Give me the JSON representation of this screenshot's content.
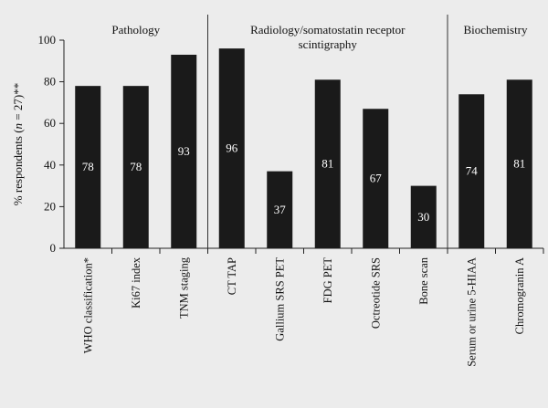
{
  "chart_data": {
    "type": "bar",
    "title": "",
    "xlabel": "",
    "ylabel": "% respondents (n = 27)**",
    "ylim": [
      0,
      100
    ],
    "yticks": [
      0,
      20,
      40,
      60,
      80,
      100
    ],
    "grid": false,
    "bar_color": "#1a1a1a",
    "value_label_color": "#ffffff",
    "groups": [
      {
        "name": "Pathology",
        "name_lines": [
          "Pathology"
        ],
        "categories": [
          "WHO classification*",
          "Ki67 index",
          "TNM staging"
        ]
      },
      {
        "name": "Radiology/somatostatin receptor scintigraphy",
        "name_lines": [
          "Radiology/somatostatin receptor",
          "scintigraphy"
        ],
        "categories": [
          "CT TAP",
          "Gallium SRS PET",
          "FDG PET",
          "Octreotide SRS",
          "Bone scan"
        ]
      },
      {
        "name": "Biochemistry",
        "name_lines": [
          "Biochemistry"
        ],
        "categories": [
          "Serum or urine 5-HIAA",
          "Chromogranin A"
        ]
      }
    ],
    "categories": [
      "WHO classification*",
      "Ki67 index",
      "TNM staging",
      "CT TAP",
      "Gallium SRS PET",
      "FDG PET",
      "Octreotide SRS",
      "Bone scan",
      "Serum or urine 5-HIAA",
      "Chromogranin A"
    ],
    "values": [
      78,
      78,
      93,
      96,
      37,
      81,
      67,
      30,
      74,
      81
    ],
    "value_labels": [
      "78",
      "78",
      "93",
      "96",
      "37",
      "81",
      "67",
      "30",
      "74",
      "81"
    ]
  }
}
